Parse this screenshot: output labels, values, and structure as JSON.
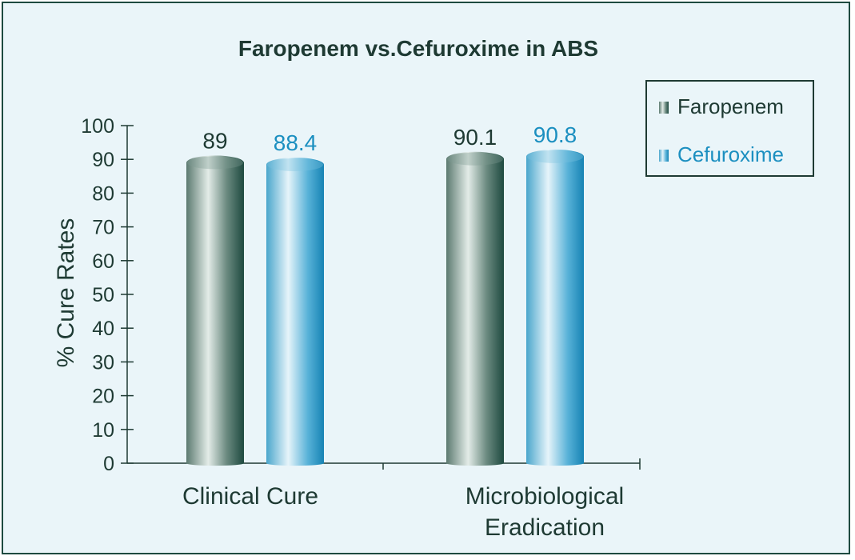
{
  "chart_data": {
    "type": "bar",
    "title": "Faropenem vs.Cefuroxime in ABS",
    "xlabel": "",
    "ylabel": "% Cure Rates",
    "ylim": [
      0,
      100
    ],
    "y_ticks": [
      0,
      10,
      20,
      30,
      40,
      50,
      60,
      70,
      80,
      90,
      100
    ],
    "categories": [
      [
        "Clinical Cure"
      ],
      [
        "Microbiological",
        "Eradication"
      ]
    ],
    "series": [
      {
        "name": "Faropenem",
        "values": [
          89,
          90.1
        ],
        "labels": [
          "89",
          "90.1"
        ],
        "color": "#1e4a40",
        "label_color": "#1e3a33"
      },
      {
        "name": "Cefuroxime",
        "values": [
          88.4,
          90.8
        ],
        "labels": [
          "88.4",
          "90.8"
        ],
        "color": "#1b8fc0",
        "label_color": "#1b8fc0"
      }
    ],
    "grid": false,
    "legend_position": "top-right"
  },
  "colors": {
    "frame_border": "#1e4a40",
    "background": "#eaf5f9",
    "text_dark": "#1e3a33"
  }
}
